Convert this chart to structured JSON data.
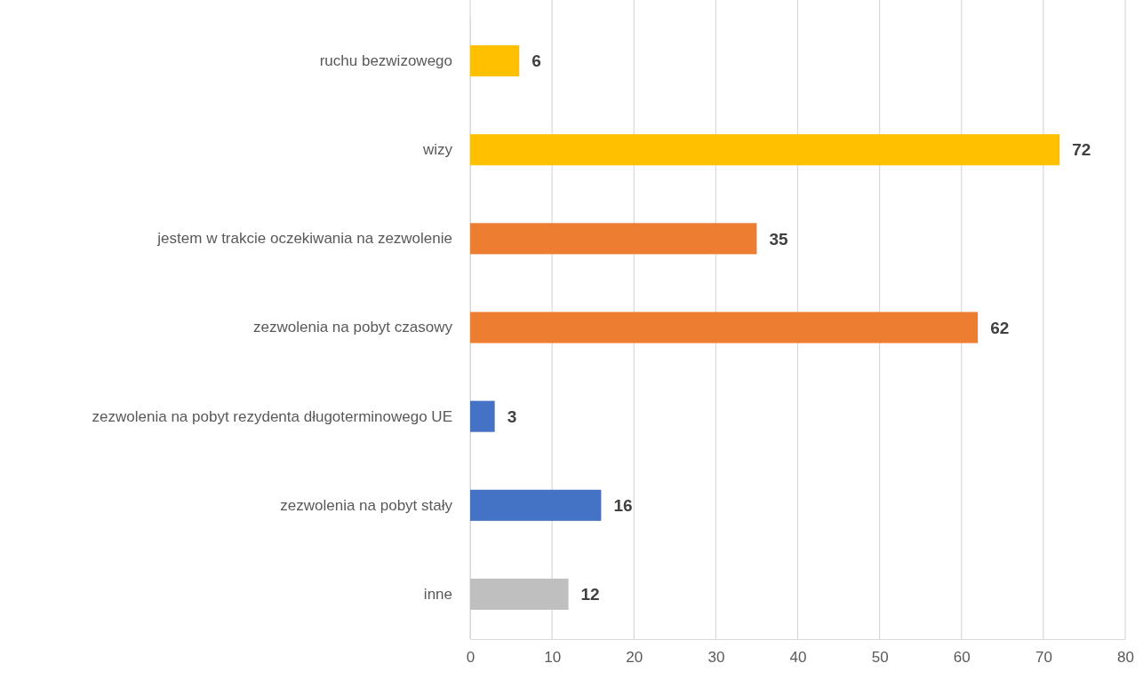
{
  "chart_data": {
    "type": "bar",
    "orientation": "horizontal",
    "categories": [
      "ruchu bezwizowego",
      "wizy",
      "jestem w trakcie oczekiwania na zezwolenie",
      "zezwolenia na pobyt czasowy",
      "zezwolenia na pobyt rezydenta długoterminowego UE",
      "zezwolenia na pobyt stały",
      "inne"
    ],
    "values": [
      6,
      72,
      35,
      62,
      3,
      16,
      12
    ],
    "colors": [
      "#ffc000",
      "#ffc000",
      "#ed7d31",
      "#ed7d31",
      "#4472c4",
      "#4472c4",
      "#bfbfbf"
    ],
    "xlim": [
      0,
      80
    ],
    "xticks": [
      0,
      10,
      20,
      30,
      40,
      50,
      60,
      70,
      80
    ],
    "grid": "x",
    "data_labels": true
  }
}
